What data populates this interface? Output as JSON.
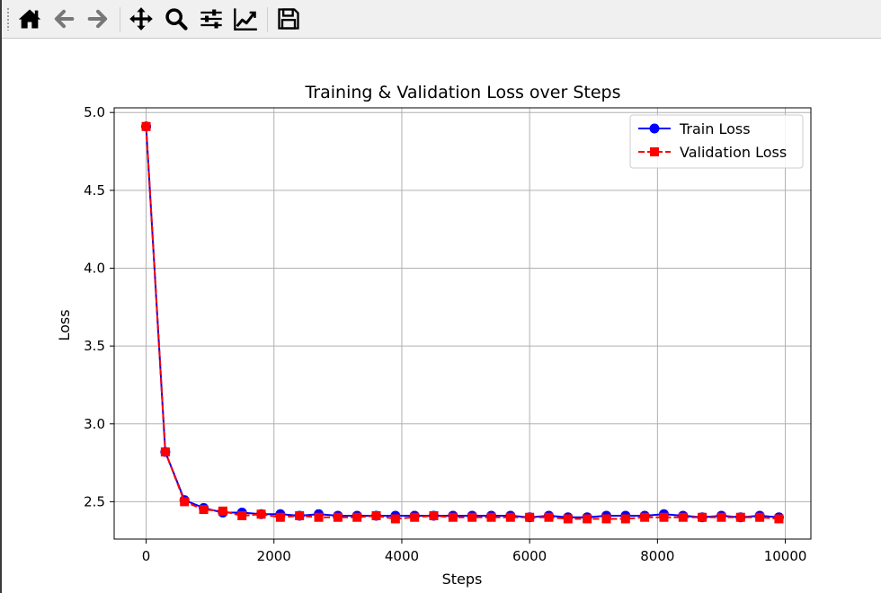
{
  "toolbar": {
    "icons": [
      "home-icon",
      "back-arrow-icon",
      "forward-arrow-icon",
      "pan-icon",
      "zoom-icon",
      "configure-subplots-icon",
      "edit-axis-icon",
      "save-icon"
    ]
  },
  "chart_data": {
    "type": "line",
    "title": "Training & Validation Loss over Steps",
    "xlabel": "Steps",
    "ylabel": "Loss",
    "xlim": [
      -500,
      10400
    ],
    "ylim": [
      2.26,
      5.03
    ],
    "xticks": [
      0,
      2000,
      4000,
      6000,
      8000,
      10000
    ],
    "yticks": [
      2.5,
      3.0,
      3.5,
      4.0,
      4.5,
      5.0
    ],
    "grid": true,
    "legend_position": "top-right",
    "x": [
      0,
      300,
      600,
      900,
      1200,
      1500,
      1800,
      2100,
      2400,
      2700,
      3000,
      3300,
      3600,
      3900,
      4200,
      4500,
      4800,
      5100,
      5400,
      5700,
      6000,
      6300,
      6600,
      6900,
      7200,
      7500,
      7800,
      8100,
      8400,
      8700,
      9000,
      9300,
      9600,
      9900
    ],
    "series": [
      {
        "name": "Train Loss",
        "color": "#0000ff",
        "marker": "circle",
        "linestyle": "solid",
        "values": [
          4.91,
          2.82,
          2.51,
          2.46,
          2.43,
          2.43,
          2.42,
          2.42,
          2.41,
          2.42,
          2.41,
          2.41,
          2.41,
          2.41,
          2.41,
          2.41,
          2.41,
          2.41,
          2.41,
          2.41,
          2.4,
          2.41,
          2.4,
          2.4,
          2.41,
          2.41,
          2.41,
          2.42,
          2.41,
          2.4,
          2.41,
          2.4,
          2.41,
          2.4
        ]
      },
      {
        "name": "Validation Loss",
        "color": "#ff0000",
        "marker": "square",
        "linestyle": "dashed",
        "values": [
          4.91,
          2.82,
          2.5,
          2.45,
          2.44,
          2.41,
          2.42,
          2.4,
          2.41,
          2.4,
          2.4,
          2.4,
          2.41,
          2.39,
          2.4,
          2.41,
          2.4,
          2.4,
          2.4,
          2.4,
          2.4,
          2.4,
          2.39,
          2.39,
          2.39,
          2.39,
          2.4,
          2.4,
          2.4,
          2.4,
          2.4,
          2.4,
          2.4,
          2.39
        ]
      }
    ]
  }
}
